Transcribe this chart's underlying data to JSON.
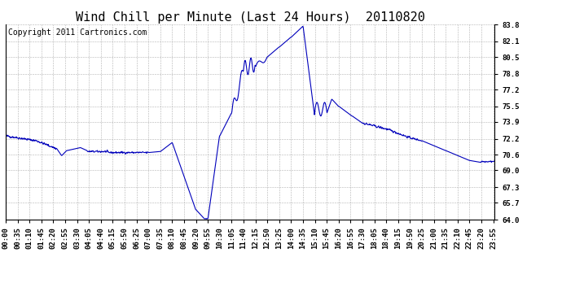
{
  "title": "Wind Chill per Minute (Last 24 Hours)  20110820",
  "copyright_text": "Copyright 2011 Cartronics.com",
  "line_color": "#0000bb",
  "bg_color": "#ffffff",
  "plot_bg_color": "#ffffff",
  "grid_color": "#aaaaaa",
  "ylim": [
    64.0,
    83.8
  ],
  "yticks": [
    64.0,
    65.7,
    67.3,
    69.0,
    70.6,
    72.2,
    73.9,
    75.5,
    77.2,
    78.8,
    80.5,
    82.1,
    83.8
  ],
  "xtick_labels": [
    "00:00",
    "00:35",
    "01:10",
    "01:45",
    "02:20",
    "02:55",
    "03:30",
    "04:05",
    "04:40",
    "05:15",
    "05:50",
    "06:25",
    "07:00",
    "07:35",
    "08:10",
    "08:45",
    "09:20",
    "09:55",
    "10:30",
    "11:05",
    "11:40",
    "12:15",
    "12:50",
    "13:25",
    "14:00",
    "14:35",
    "15:10",
    "15:45",
    "16:20",
    "16:55",
    "17:30",
    "18:05",
    "18:40",
    "19:15",
    "19:50",
    "20:25",
    "21:00",
    "21:35",
    "22:10",
    "22:45",
    "23:20",
    "23:55"
  ],
  "title_fontsize": 11,
  "copyright_fontsize": 7,
  "tick_fontsize": 6.5
}
